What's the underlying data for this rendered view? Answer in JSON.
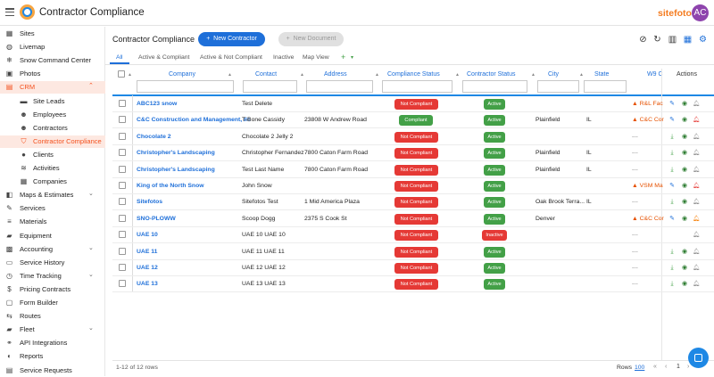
{
  "app": {
    "title": "Contractor Compliance",
    "brand": "sitefotos",
    "avatar_initials": "AC"
  },
  "sidebar": {
    "items": [
      {
        "label": "Sites",
        "icon": "building-icon"
      },
      {
        "label": "Livemap",
        "icon": "globe-icon"
      },
      {
        "label": "Snow Command Center",
        "icon": "snowflake-icon"
      },
      {
        "label": "Photos",
        "icon": "photo-icon"
      },
      {
        "label": "CRM",
        "icon": "briefcase-icon"
      },
      {
        "label": "Site Leads",
        "icon": "folder-icon"
      },
      {
        "label": "Employees",
        "icon": "people-icon"
      },
      {
        "label": "Contractors",
        "icon": "people-icon"
      },
      {
        "label": "Contractor Compliance",
        "icon": "shield-icon"
      },
      {
        "label": "Clients",
        "icon": "person-icon"
      },
      {
        "label": "Activities",
        "icon": "activity-icon"
      },
      {
        "label": "Companies",
        "icon": "building-icon"
      },
      {
        "label": "Maps & Estimates",
        "icon": "map-icon"
      },
      {
        "label": "Services",
        "icon": "wrench-icon"
      },
      {
        "label": "Materials",
        "icon": "stack-icon"
      },
      {
        "label": "Equipment",
        "icon": "truck-icon"
      },
      {
        "label": "Accounting",
        "icon": "calculator-icon"
      },
      {
        "label": "Service History",
        "icon": "history-icon"
      },
      {
        "label": "Time Tracking",
        "icon": "clock-icon"
      },
      {
        "label": "Pricing Contracts",
        "icon": "dollar-icon"
      },
      {
        "label": "Form Builder",
        "icon": "form-icon"
      },
      {
        "label": "Routes",
        "icon": "route-icon"
      },
      {
        "label": "Fleet",
        "icon": "truck-icon"
      },
      {
        "label": "API Integrations",
        "icon": "link-icon"
      },
      {
        "label": "Reports",
        "icon": "report-icon"
      },
      {
        "label": "Service Requests",
        "icon": "request-icon"
      }
    ]
  },
  "main": {
    "page_title": "Contractor Compliance",
    "new_contractor": "New Contractor",
    "new_document": "New Document",
    "tabs": [
      "All",
      "Active & Compliant",
      "Active & Not Compliant",
      "Inactive",
      "Map View"
    ],
    "columns": [
      "Company",
      "Contact",
      "Address",
      "Compliance Status",
      "Contractor Status",
      "City",
      "State",
      "W9 C",
      "Actions"
    ],
    "rows": [
      {
        "company": "ABC123 snow",
        "contact": "Test Delete",
        "address": "",
        "compliance": "Not Compliant",
        "status": "Active",
        "city": "",
        "state": "",
        "w9": "R&L Fac",
        "w9_warn": true,
        "action1": "edit",
        "bell": "grey"
      },
      {
        "company": "C&C Construction and Management, llc",
        "contact": "T-Bone Cassidy",
        "address": "23808 W Andrew Road",
        "compliance": "Compliant",
        "status": "Active",
        "city": "Plainfield",
        "state": "IL",
        "w9": "C&C Cor",
        "w9_warn": true,
        "action1": "edit",
        "bell": "red"
      },
      {
        "company": "Chocolate 2",
        "contact": "Chocolate 2 Jelly 2",
        "address": "",
        "compliance": "Not Compliant",
        "status": "Active",
        "city": "",
        "state": "",
        "w9": "---",
        "w9_warn": false,
        "action1": "download",
        "bell": "grey"
      },
      {
        "company": "Christopher's Landscaping",
        "contact": "Christopher Fernandez",
        "address": "7800 Caton Farm Road",
        "compliance": "Not Compliant",
        "status": "Active",
        "city": "Plainfield",
        "state": "IL",
        "w9": "---",
        "w9_warn": false,
        "action1": "download",
        "bell": "grey"
      },
      {
        "company": "Christopher's Landscaping",
        "contact": "Test Last Name",
        "address": "7800 Caton Farm Road",
        "compliance": "Not Compliant",
        "status": "Active",
        "city": "Plainfield",
        "state": "IL",
        "w9": "---",
        "w9_warn": false,
        "action1": "download",
        "bell": "grey"
      },
      {
        "company": "King of the North Snow",
        "contact": "John Snow",
        "address": "",
        "compliance": "Not Compliant",
        "status": "Active",
        "city": "",
        "state": "",
        "w9": "VSM Ma",
        "w9_warn": true,
        "action1": "edit",
        "bell": "red"
      },
      {
        "company": "Sitefotos",
        "contact": "Sitefotos Test",
        "address": "1 Mid America Plaza",
        "compliance": "Not Compliant",
        "status": "Active",
        "city": "Oak Brook Terra...",
        "state": "IL",
        "w9": "---",
        "w9_warn": false,
        "action1": "download",
        "bell": "grey"
      },
      {
        "company": "SNO-PLOWW",
        "contact": "Scoop Dogg",
        "address": "2375 S Cook St",
        "compliance": "Not Compliant",
        "status": "Active",
        "city": "Denver",
        "state": "",
        "w9": "C&C Cor",
        "w9_warn": true,
        "action1": "edit",
        "bell": "orange"
      },
      {
        "company": "UAE 10",
        "contact": "UAE 10 UAE 10",
        "address": "",
        "compliance": "Not Compliant",
        "status": "Inactive",
        "city": "",
        "state": "",
        "w9": "---",
        "w9_warn": false,
        "action1": "",
        "bell": "grey"
      },
      {
        "company": "UAE 11",
        "contact": "UAE 11 UAE 11",
        "address": "",
        "compliance": "Not Compliant",
        "status": "Active",
        "city": "",
        "state": "",
        "w9": "---",
        "w9_warn": false,
        "action1": "download",
        "bell": "grey"
      },
      {
        "company": "UAE 12",
        "contact": "UAE 12 UAE 12",
        "address": "",
        "compliance": "Not Compliant",
        "status": "Active",
        "city": "",
        "state": "",
        "w9": "---",
        "w9_warn": false,
        "action1": "download",
        "bell": "grey"
      },
      {
        "company": "UAE 13",
        "contact": "UAE 13 UAE 13",
        "address": "",
        "compliance": "Not Compliant",
        "status": "Active",
        "city": "",
        "state": "",
        "w9": "---",
        "w9_warn": false,
        "action1": "download",
        "bell": "grey"
      }
    ],
    "footer": {
      "count": "1-12 of 12 rows",
      "rows_label": "Rows",
      "rows_value": "100",
      "page": "1"
    }
  },
  "colors": {
    "accent": "#1e6fd9",
    "crm_active": "#f4511e",
    "not_compliant": "#e53935",
    "compliant": "#43a047",
    "brand": "#f47c20"
  }
}
